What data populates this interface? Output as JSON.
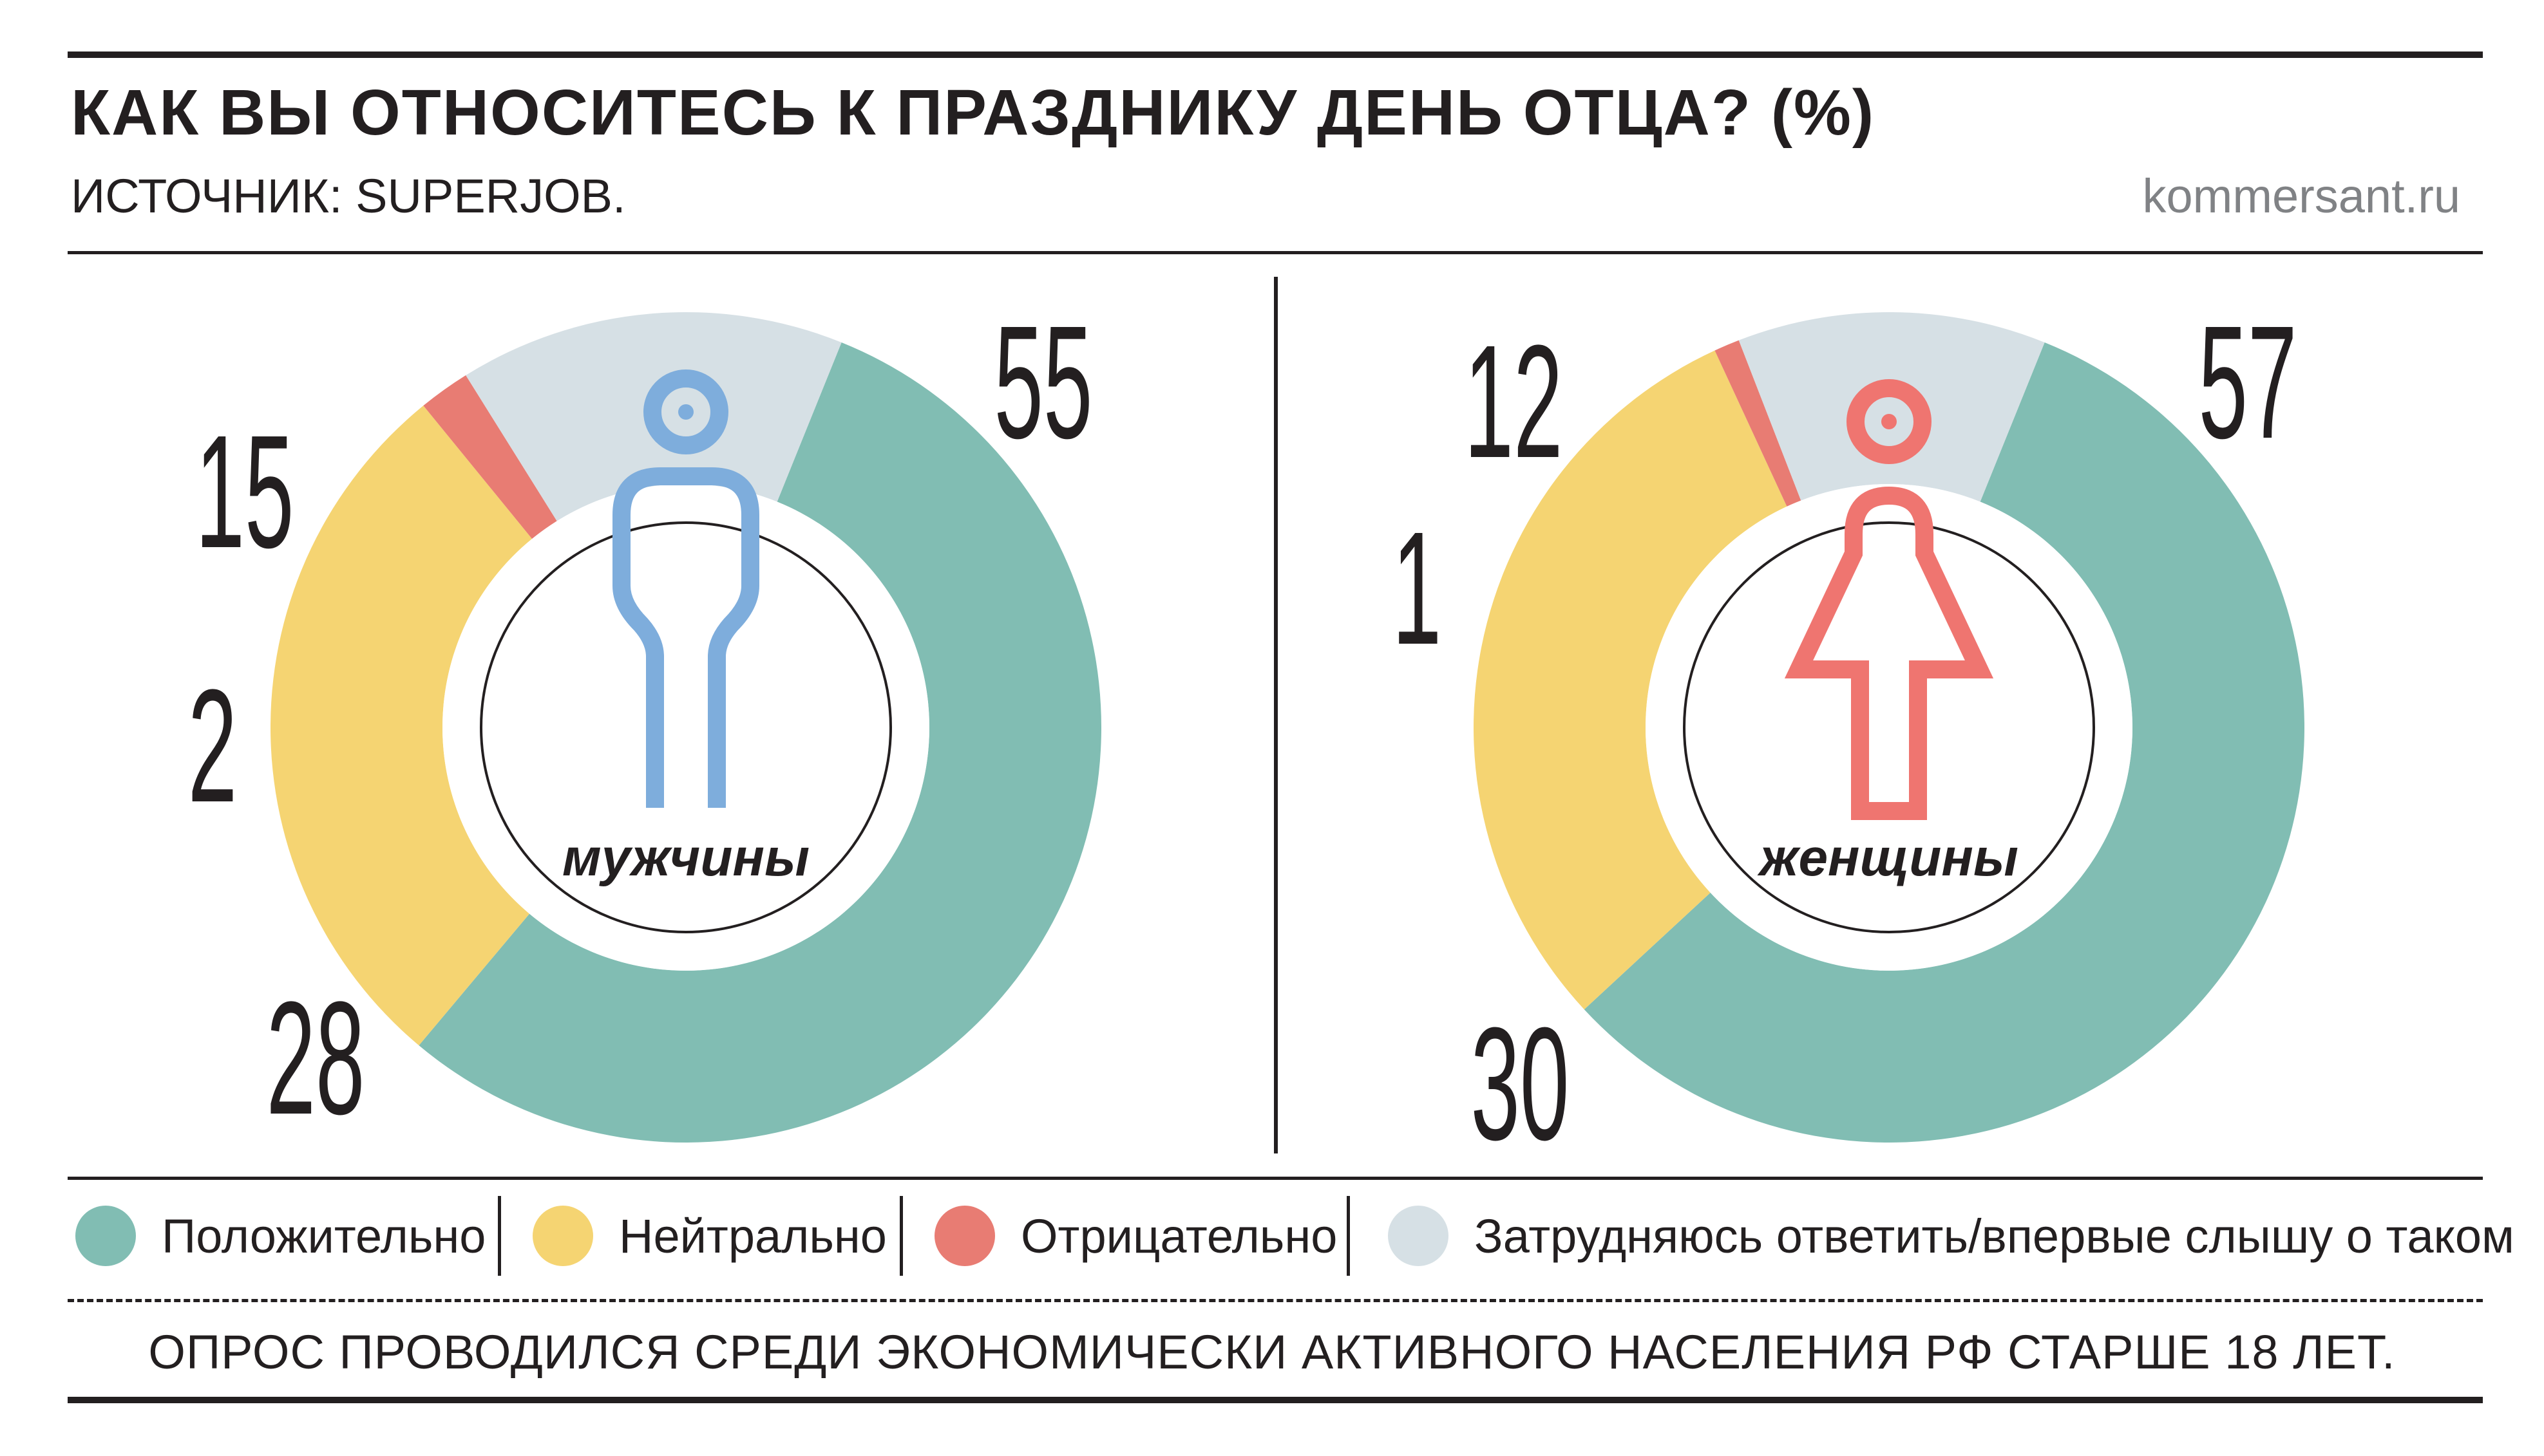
{
  "header": {
    "title": "КАК ВЫ ОТНОСИТЕСЬ К ПРАЗДНИКУ ДЕНЬ ОТЦА? (%)",
    "source": "ИСТОЧНИК: SUPERJOB.",
    "site": "kommersant.ru"
  },
  "colors": {
    "positive": "#81bdb3",
    "neutral": "#f5d472",
    "negative": "#e87c73",
    "unsure": "#d6e0e5",
    "men_icon": "#7eaddc",
    "women_icon": "#ef7570"
  },
  "chart_data": [
    {
      "type": "pie",
      "label": "мужчины",
      "categories": [
        "Положительно",
        "Нейтрально",
        "Отрицательно",
        "Затрудняюсь ответить/впервые слышу о таком"
      ],
      "values": [
        55,
        28,
        2,
        15
      ]
    },
    {
      "type": "pie",
      "label": "женщины",
      "categories": [
        "Положительно",
        "Нейтрально",
        "Отрицательно",
        "Затрудняюсь ответить/впервые слышу о таком"
      ],
      "values": [
        57,
        30,
        1,
        12
      ]
    }
  ],
  "legend": [
    {
      "label": "Положительно",
      "color": "#81bdb3"
    },
    {
      "label": "Нейтрально",
      "color": "#f5d472"
    },
    {
      "label": "Отрицательно",
      "color": "#e87c73"
    },
    {
      "label": "Затрудняюсь ответить/впервые слышу о таком",
      "color": "#d6e0e5"
    }
  ],
  "footer": "ОПРОС ПРОВОДИЛСЯ СРЕДИ ЭКОНОМИЧЕСКИ АКТИВНОГО НАСЕЛЕНИЯ РФ СТАРШЕ 18 ЛЕТ."
}
